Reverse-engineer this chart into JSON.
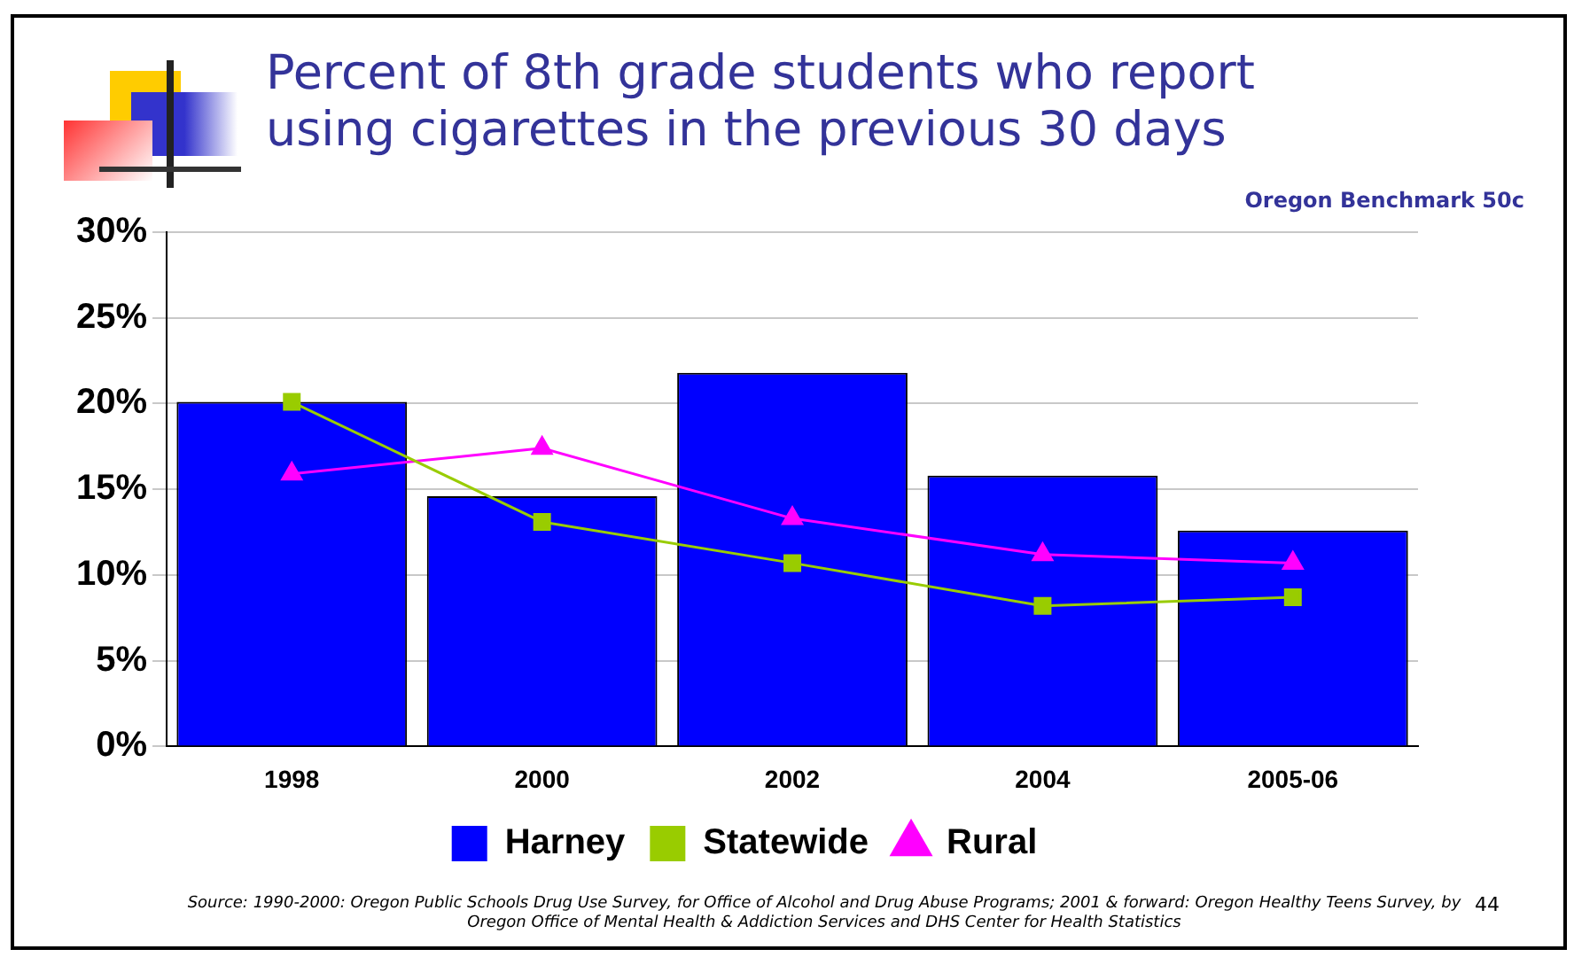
{
  "chart_data": {
    "type": "bar",
    "title": "Percent of 8th grade students who report using cigarettes in the previous 30 days",
    "subtitle": "Oregon Benchmark 50c",
    "categories": [
      "1998",
      "2000",
      "2002",
      "2004",
      "2005-06"
    ],
    "series": [
      {
        "name": "Harney",
        "color": "#0000ff",
        "values": [
          20.1,
          14.6,
          21.8,
          15.8,
          12.6
        ]
      },
      {
        "name": "Statewide",
        "type": "line",
        "color": "#99cc00",
        "marker": "square",
        "values": [
          20.1,
          13.1,
          10.7,
          8.2,
          8.7
        ]
      },
      {
        "name": "Rural",
        "type": "line",
        "color": "#ff00ff",
        "marker": "triangle",
        "values": [
          15.9,
          17.4,
          13.3,
          11.2,
          10.7
        ]
      }
    ],
    "ylim": [
      0,
      30
    ],
    "yticks": [
      {
        "value": 0,
        "label": "0%"
      },
      {
        "value": 5,
        "label": "5%"
      },
      {
        "value": 10,
        "label": "10%"
      },
      {
        "value": 15,
        "label": "15%"
      },
      {
        "value": 20,
        "label": "20%"
      },
      {
        "value": 25,
        "label": "25%"
      },
      {
        "value": 30,
        "label": "30%"
      }
    ],
    "grid": "y",
    "legend": "bottom",
    "line_style": "solid",
    "annotations": [
      "Source:  1990-2000: Oregon Public Schools Drug Use Survey, for Office of Alcohol and Drug Abuse Programs; 2001 & forward: Oregon Healthy Teens Survey, by Oregon Office of Mental Health & Addiction Services and DHS Center for Health Statistics",
      "44"
    ]
  }
}
